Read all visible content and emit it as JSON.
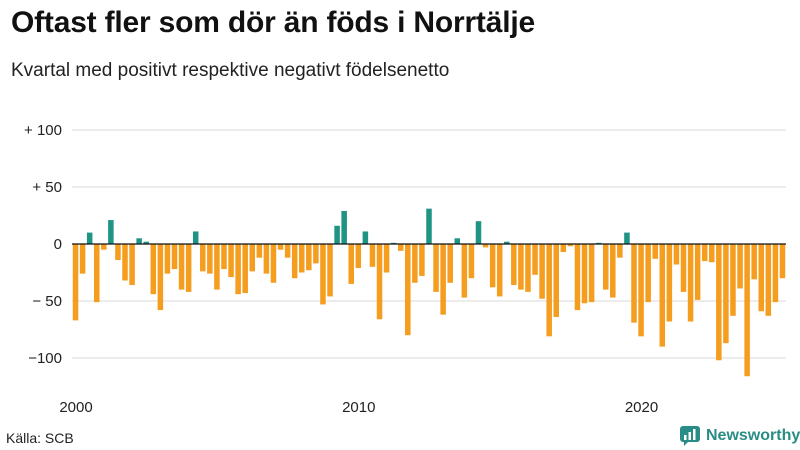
{
  "header": {
    "title": "Oftast fler som dör än föds i Norrtälje",
    "subtitle": "Kvartal med positivt respektive negativt födelsenetto"
  },
  "footer": {
    "source": "Källa: SCB",
    "brand": "Newsworthy",
    "brand_icon": "newsworthy-logo-icon"
  },
  "colors": {
    "positive": "#1f9384",
    "negative": "#f49d1f",
    "baseline": "#111111",
    "grid": "#d9d9d9",
    "brand": "#2a8c86"
  },
  "chart_data": {
    "type": "bar",
    "title": "Oftast fler som dör än föds i Norrtälje",
    "subtitle": "Kvartal med positivt respektive negativt födelsenetto",
    "xlabel": "",
    "ylabel": "",
    "ylim": [
      -120,
      110
    ],
    "yticks": [
      100,
      50,
      0,
      -50,
      -100
    ],
    "ytick_labels": [
      "+ 100",
      "+  50",
      "0",
      "− 50",
      "−100"
    ],
    "xticks": [
      {
        "label": "2000",
        "index": 0
      },
      {
        "label": "2010",
        "index": 40
      },
      {
        "label": "2020",
        "index": 80
      }
    ],
    "categories": [
      "2000 K1",
      "2000 K2",
      "2000 K3",
      "2000 K4",
      "2001 K1",
      "2001 K2",
      "2001 K3",
      "2001 K4",
      "2002 K1",
      "2002 K2",
      "2002 K3",
      "2002 K4",
      "2003 K1",
      "2003 K2",
      "2003 K3",
      "2003 K4",
      "2004 K1",
      "2004 K2",
      "2004 K3",
      "2004 K4",
      "2005 K1",
      "2005 K2",
      "2005 K3",
      "2005 K4",
      "2006 K1",
      "2006 K2",
      "2006 K3",
      "2006 K4",
      "2007 K1",
      "2007 K2",
      "2007 K3",
      "2007 K4",
      "2008 K1",
      "2008 K2",
      "2008 K3",
      "2008 K4",
      "2009 K1",
      "2009 K2",
      "2009 K3",
      "2009 K4",
      "2010 K1",
      "2010 K2",
      "2010 K3",
      "2010 K4",
      "2011 K1",
      "2011 K2",
      "2011 K3",
      "2011 K4",
      "2012 K1",
      "2012 K2",
      "2012 K3",
      "2012 K4",
      "2013 K1",
      "2013 K2",
      "2013 K3",
      "2013 K4",
      "2014 K1",
      "2014 K2",
      "2014 K3",
      "2014 K4",
      "2015 K1",
      "2015 K2",
      "2015 K3",
      "2015 K4",
      "2016 K1",
      "2016 K2",
      "2016 K3",
      "2016 K4",
      "2017 K1",
      "2017 K2",
      "2017 K3",
      "2017 K4",
      "2018 K1",
      "2018 K2",
      "2018 K3",
      "2018 K4",
      "2019 K1",
      "2019 K2",
      "2019 K3",
      "2019 K4",
      "2020 K1",
      "2020 K2",
      "2020 K3",
      "2020 K4",
      "2021 K1",
      "2021 K2",
      "2021 K3",
      "2021 K4",
      "2022 K1",
      "2022 K2",
      "2022 K3",
      "2022 K4",
      "2023 K1",
      "2023 K2",
      "2023 K3",
      "2023 K4",
      "2024 K1",
      "2024 K2",
      "2024 K3",
      "2024 K4",
      "2025 K1"
    ],
    "values": [
      -67,
      -26,
      10,
      -51,
      -5,
      21,
      -14,
      -32,
      -36,
      5,
      2,
      -44,
      -58,
      -26,
      -22,
      -40,
      -42,
      11,
      -24,
      -26,
      -40,
      -22,
      -29,
      -44,
      -43,
      -24,
      -12,
      -26,
      -34,
      -5,
      -12,
      -30,
      -25,
      -23,
      -17,
      -53,
      -46,
      16,
      29,
      -35,
      -21,
      11,
      -20,
      -66,
      -25,
      1,
      -6,
      -80,
      -34,
      -28,
      31,
      -42,
      -62,
      -34,
      5,
      -47,
      -30,
      20,
      -3,
      -38,
      -46,
      2,
      -36,
      -40,
      -42,
      -27,
      -48,
      -81,
      -64,
      -7,
      -2,
      -58,
      -52,
      -51,
      1,
      -40,
      -47,
      -12,
      10,
      -69,
      -81,
      -51,
      -13,
      -90,
      -68,
      -18,
      -42,
      -68,
      -49,
      -15,
      -16,
      -102,
      -87,
      -63,
      -39,
      -116,
      -31,
      -59,
      -63,
      -51,
      -30
    ]
  }
}
